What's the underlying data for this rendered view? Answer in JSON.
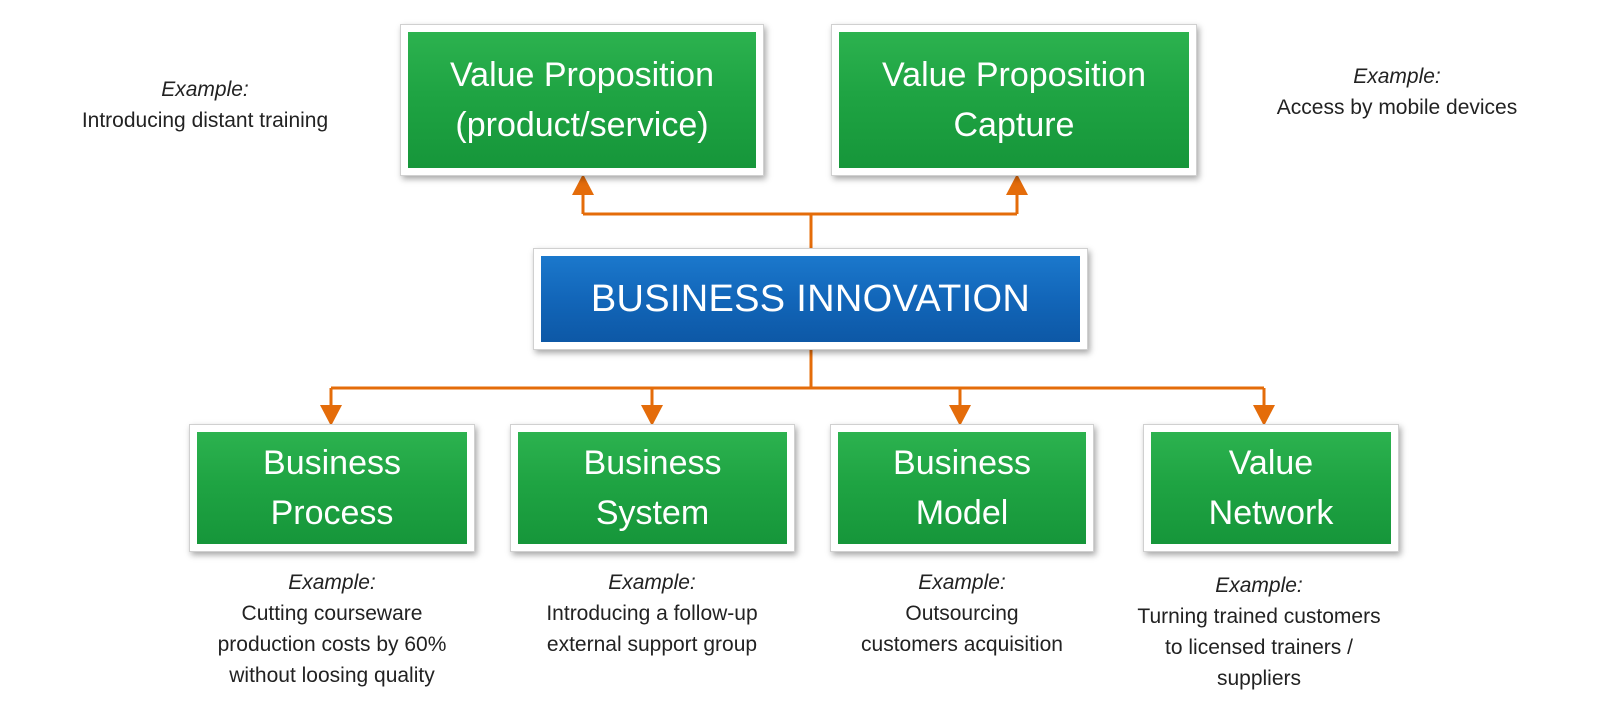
{
  "center": {
    "label": "BUSINESS INNOVATION"
  },
  "top_boxes": [
    {
      "label_line1": "Value Proposition",
      "label_line2": "(product/service)"
    },
    {
      "label_line1": "Value Proposition",
      "label_line2": "Capture"
    }
  ],
  "bottom_boxes": [
    {
      "label_line1": "Business",
      "label_line2": "Process"
    },
    {
      "label_line1": "Business",
      "label_line2": "System"
    },
    {
      "label_line1": "Business",
      "label_line2": "Model"
    },
    {
      "label_line1": "Value",
      "label_line2": "Network"
    }
  ],
  "examples": {
    "prefix": "Example:",
    "top_left": [
      "Introducing distant training"
    ],
    "top_right": [
      "Access by mobile devices"
    ],
    "process": [
      "Cutting courseware",
      "production costs by 60%",
      "without loosing quality"
    ],
    "system": [
      "Introducing a follow-up",
      "external support group"
    ],
    "model": [
      "Outsourcing",
      "customers acquisition"
    ],
    "network": [
      "Turning trained customers",
      "to licensed trainers /",
      "suppliers"
    ]
  },
  "colors": {
    "box_green": "#1fa443",
    "box_blue": "#1266b9",
    "connector_orange": "#e46c0a"
  }
}
